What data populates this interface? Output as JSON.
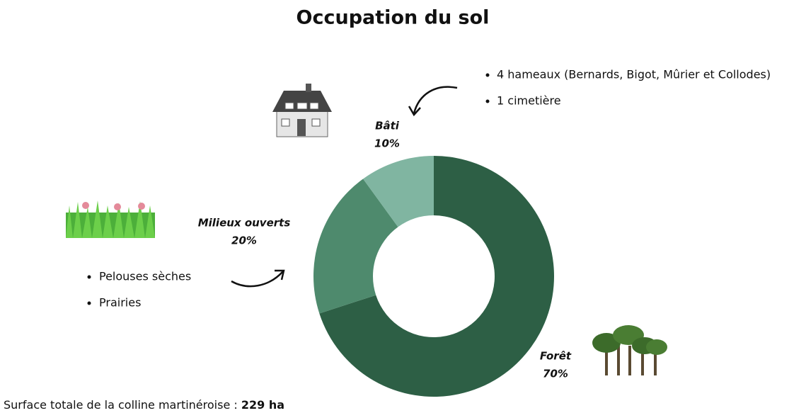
{
  "chart_data": {
    "type": "donut",
    "title": "Occupation du sol",
    "categories": [
      "Forêt",
      "Milieux ouverts",
      "Bâti"
    ],
    "values": [
      70,
      20,
      10
    ],
    "value_labels": [
      "70%",
      "20%",
      "10%"
    ],
    "colors": [
      "#2d5f45",
      "#4e8a6d",
      "#80b5a1"
    ],
    "notes": {
      "bati": [
        "4 hameaux (Bernards, Bigot, Mûrier et Collodes)",
        "1 cimetière"
      ],
      "milieux": [
        "Pelouses sèches",
        "Prairies"
      ]
    },
    "footer": {
      "text": "Surface totale de la colline martinéroise : ",
      "total": "229 ha"
    }
  }
}
